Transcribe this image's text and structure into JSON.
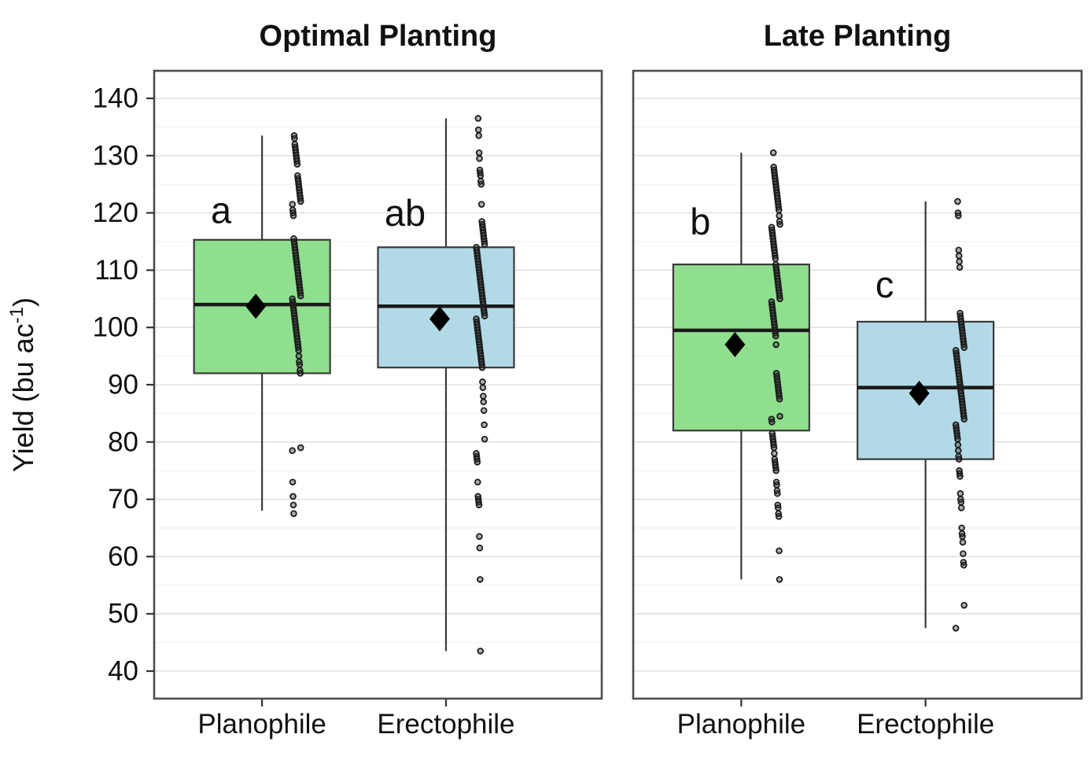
{
  "chart_data": {
    "type": "boxplot",
    "title": "",
    "ylabel": {
      "prefix": "Yield (bu ac",
      "sup": "-1",
      "suffix": ")"
    },
    "ylim": [
      35,
      145
    ],
    "yticks": [
      40,
      50,
      60,
      70,
      80,
      90,
      100,
      110,
      120,
      130,
      140
    ],
    "grid": "on",
    "legend": "none",
    "categories": [
      "Planophile",
      "Erectophile"
    ],
    "colors": {
      "planophile_fill": "#8FDF8F",
      "erectophile_fill": "#B2DAE6",
      "box_stroke": "#3A3A3A",
      "median_line": "#1A1A1A",
      "whisker": "#3A3A3A",
      "mean_marker": "#000000",
      "point_stroke": "#1C1C1C",
      "point_fill": "rgba(45,45,45,0.38)",
      "grid_major": "#E2E2E2",
      "grid_minor": "#F1F1F1",
      "panel_border": "#4D4D4D",
      "text": "#111111"
    },
    "facets": [
      {
        "title": "Optimal Planting",
        "groups": [
          {
            "category": "Planophile",
            "letter": "a",
            "letter_y": 120.5,
            "fill_key": "planophile_fill",
            "stats": {
              "whisker_low": 68,
              "q1": 92,
              "median": 104,
              "q3": 115.3,
              "whisker_high": 133.5,
              "mean": 103.7
            },
            "points": [
              133.5,
              133,
              132,
              131.5,
              131,
              130.5,
              130,
              129.5,
              129,
              128.5,
              126.5,
              126,
              125.5,
              125,
              124.5,
              124,
              123.5,
              123,
              122.5,
              122,
              121.5,
              120.5,
              120,
              119.5,
              115.5,
              115,
              114.5,
              114,
              113.5,
              113,
              112.5,
              112,
              111.5,
              111,
              110.5,
              110,
              109.5,
              109,
              108.5,
              108,
              107.5,
              107,
              106.5,
              106,
              105.5,
              105,
              104.5,
              104,
              103.5,
              103,
              102.5,
              102,
              101.5,
              101,
              100.5,
              100,
              99.5,
              99,
              98.5,
              98,
              97.5,
              97,
              96.5,
              96,
              95,
              94,
              93.5,
              92.5,
              92,
              79,
              78.5,
              73,
              70.5,
              69,
              67.5
            ]
          },
          {
            "category": "Erectophile",
            "letter": "ab",
            "letter_y": 120,
            "fill_key": "erectophile_fill",
            "stats": {
              "whisker_low": 43.5,
              "q1": 93,
              "median": 103.7,
              "q3": 114,
              "whisker_high": 136.5,
              "mean": 101.5
            },
            "points": [
              136.5,
              134.5,
              133.5,
              130.5,
              129.5,
              127.5,
              127,
              126.5,
              125.5,
              125,
              121.5,
              118.5,
              118,
              117.5,
              117,
              116.5,
              116,
              115.5,
              115,
              114.5,
              114,
              113.5,
              113,
              112.5,
              112,
              111.5,
              111,
              110.5,
              110,
              109.5,
              109,
              108.5,
              108,
              107.5,
              107,
              106.5,
              106,
              105.5,
              105,
              104.5,
              104,
              103.5,
              103,
              102.5,
              102,
              101.5,
              101,
              100.5,
              100,
              99.5,
              99,
              98.5,
              98,
              97.5,
              97,
              96.5,
              96,
              95.5,
              95,
              94.5,
              94,
              93.5,
              93,
              90.5,
              89.5,
              88,
              87,
              85.5,
              83,
              80.5,
              78,
              77.5,
              77,
              76.5,
              73,
              70.5,
              70,
              69.5,
              69,
              63.5,
              61.5,
              56,
              43.5
            ]
          }
        ]
      },
      {
        "title": "Late Planting",
        "groups": [
          {
            "category": "Planophile",
            "letter": "b",
            "letter_y": 118.5,
            "fill_key": "planophile_fill",
            "stats": {
              "whisker_low": 56,
              "q1": 82,
              "median": 99.5,
              "q3": 111,
              "whisker_high": 130.5,
              "mean": 97
            },
            "points": [
              130.5,
              128,
              127.5,
              127,
              126.5,
              126,
              125.5,
              125,
              124.5,
              124,
              123.5,
              123,
              122.5,
              122,
              121.5,
              121,
              120.5,
              119.5,
              118.5,
              118,
              117.5,
              117,
              116.5,
              116,
              115.5,
              115,
              114.5,
              114,
              113.5,
              113,
              112.5,
              112,
              111,
              110.5,
              110,
              109.5,
              109,
              108.5,
              108,
              107.5,
              107,
              106.5,
              106,
              105.5,
              105,
              104.5,
              104,
              103.5,
              103,
              102.5,
              102,
              101.5,
              101,
              100.5,
              100,
              99.5,
              99,
              98.5,
              97,
              92,
              91.5,
              91,
              90.5,
              90,
              89.5,
              89,
              88.5,
              88,
              87.5,
              84.5,
              84,
              83.5,
              81.5,
              81,
              80.5,
              80,
              79.5,
              79,
              78,
              77,
              76.5,
              76,
              75.5,
              75,
              73,
              72.5,
              71.5,
              71,
              69,
              68.5,
              67.5,
              67,
              61,
              56
            ]
          },
          {
            "category": "Erectophile",
            "letter": "c",
            "letter_y": 107.5,
            "fill_key": "erectophile_fill",
            "stats": {
              "whisker_low": 47.5,
              "q1": 77,
              "median": 89.5,
              "q3": 101,
              "whisker_high": 122,
              "mean": 88.5
            },
            "points": [
              122,
              120,
              119.5,
              113.5,
              112.5,
              111.5,
              110.5,
              102.5,
              102,
              101.5,
              101,
              100.5,
              100,
              99.5,
              99,
              98.5,
              98,
              97.5,
              97,
              96.5,
              96,
              95.5,
              95,
              94.5,
              94,
              93.5,
              93,
              92.5,
              92,
              91.5,
              91,
              90.5,
              90,
              89.5,
              89,
              88.5,
              88,
              87.5,
              87,
              86.5,
              86,
              85.5,
              85,
              84.5,
              84,
              83,
              82.5,
              82,
              81.5,
              81,
              80.5,
              79.5,
              78.5,
              77.5,
              77,
              75,
              74.5,
              74,
              71,
              70,
              69.5,
              68.5,
              65,
              64,
              63.5,
              62.5,
              60.5,
              59,
              58.5,
              51.5,
              47.5
            ]
          }
        ]
      }
    ]
  }
}
